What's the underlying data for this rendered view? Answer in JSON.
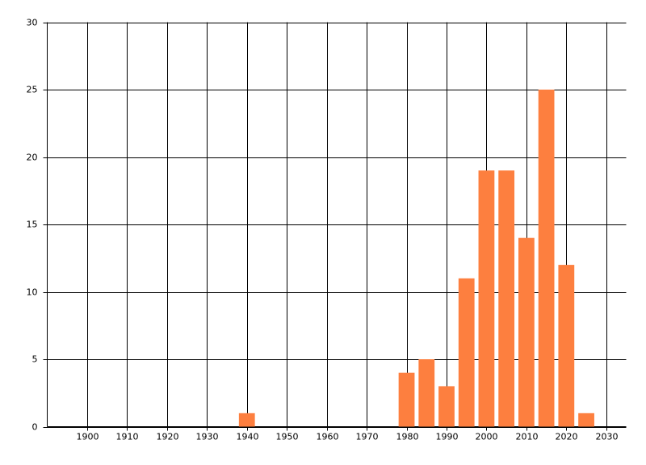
{
  "chart_data": {
    "type": "bar",
    "x": [
      1940,
      1980,
      1985,
      1990,
      1995,
      2000,
      2005,
      2010,
      2015,
      2020,
      2025
    ],
    "values": [
      1,
      4,
      5,
      3,
      11,
      19,
      19,
      14,
      25,
      12,
      1
    ],
    "color": "#fd7f3f",
    "xlim": [
      1890,
      2035
    ],
    "xticks": [
      1900,
      1910,
      1920,
      1930,
      1940,
      1950,
      1960,
      1970,
      1980,
      1990,
      2000,
      2010,
      2020,
      2030
    ],
    "ylim": [
      0,
      30
    ],
    "yticks": [
      0,
      5,
      10,
      15,
      20,
      25,
      30
    ],
    "grid": true
  }
}
